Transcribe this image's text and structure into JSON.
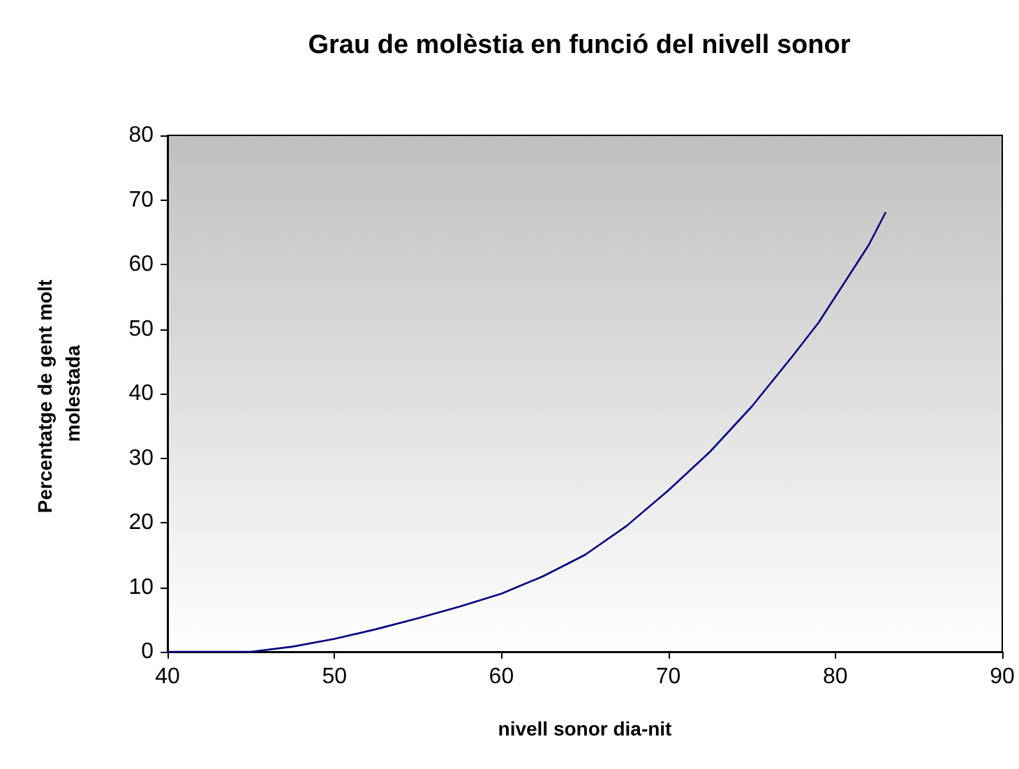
{
  "chart_data": {
    "type": "line",
    "title": "Grau de molèstia en funció del nivell sonor",
    "xlabel": "nivell sonor dia-nit",
    "ylabel": "Percentatge de gent molt molestada",
    "x": [
      40,
      45,
      47.5,
      50,
      52.5,
      55,
      57.5,
      60,
      62.5,
      65,
      67.5,
      70,
      72.5,
      75,
      77.5,
      79,
      80,
      82,
      83
    ],
    "series": [
      {
        "color": "#000080",
        "values": [
          0,
          0,
          0.8,
          2,
          3.5,
          5.2,
          7,
          9,
          11.7,
          15,
          19.5,
          25,
          31,
          38,
          46,
          51,
          55,
          63,
          68
        ]
      }
    ],
    "xlim": [
      40,
      90
    ],
    "xticks": [
      40,
      50,
      60,
      70,
      80,
      90
    ],
    "ylim": [
      0,
      80
    ],
    "yticks": [
      0,
      10,
      20,
      30,
      40,
      50,
      60,
      70,
      80
    ],
    "grid": false,
    "marker": "none",
    "line_style": "solid"
  }
}
